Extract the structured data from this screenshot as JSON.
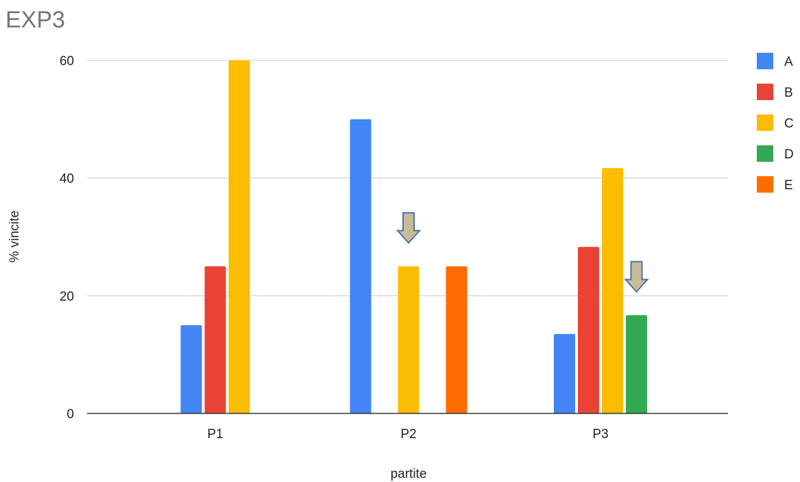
{
  "chart_data": {
    "type": "bar",
    "title": "EXP3",
    "xlabel": "partite",
    "ylabel": "% vincite",
    "categories": [
      "P1",
      "P2",
      "P3"
    ],
    "ylim": [
      0,
      60
    ],
    "yticks": [
      0,
      20,
      40,
      60
    ],
    "grid": true,
    "legend_position": "right",
    "series": [
      {
        "name": "A",
        "color": "#4285f4",
        "values": [
          15,
          50,
          13.5
        ]
      },
      {
        "name": "B",
        "color": "#ea4335",
        "values": [
          25,
          null,
          28.3
        ]
      },
      {
        "name": "C",
        "color": "#fbbc04",
        "values": [
          60,
          25,
          41.7
        ]
      },
      {
        "name": "D",
        "color": "#34a853",
        "values": [
          null,
          null,
          16.7
        ]
      },
      {
        "name": "E",
        "color": "#ff6d01",
        "values": [
          null,
          25,
          null
        ]
      }
    ],
    "annotations": [
      {
        "type": "down-arrow",
        "category": "P2",
        "series": "C",
        "color": "#c8bc98"
      },
      {
        "type": "down-arrow",
        "category": "P3",
        "series": "D",
        "color": "#c8bc98"
      }
    ]
  }
}
